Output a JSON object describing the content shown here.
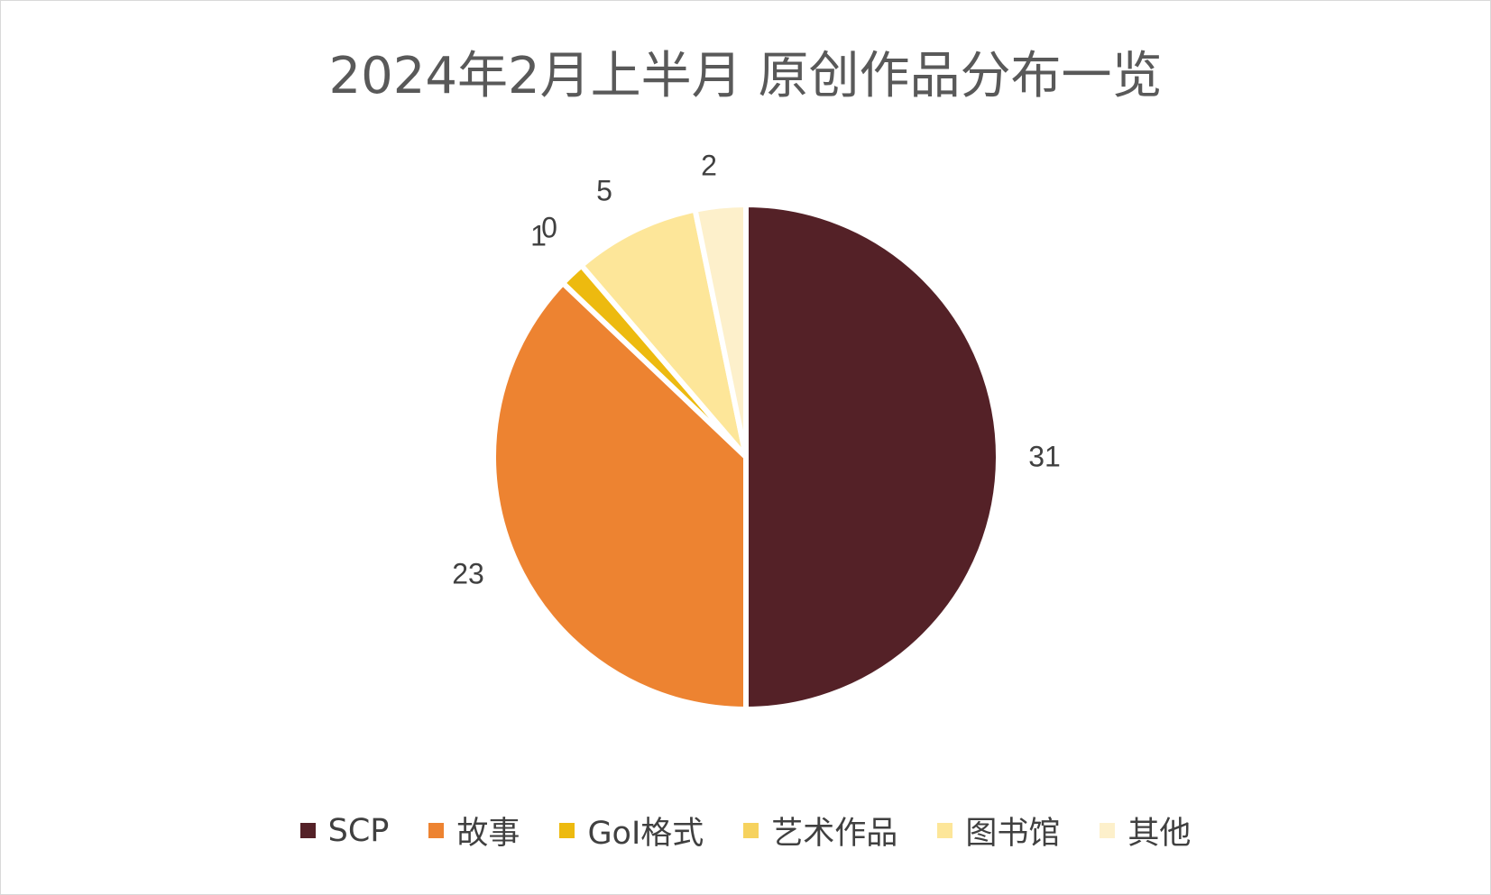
{
  "chart_data": {
    "type": "pie",
    "title": "2024年2月上半月 原创作品分布一览",
    "categories": [
      "SCP",
      "故事",
      "GoI格式",
      "艺术作品",
      "图书馆",
      "其他"
    ],
    "values": [
      31,
      23,
      1,
      0,
      5,
      2
    ],
    "colors": [
      "#542127",
      "#ed8331",
      "#edba0f",
      "#f6d25e",
      "#fde699",
      "#fdf0cb"
    ],
    "legend_position": "bottom",
    "start_angle": "12 o'clock, clockwise"
  }
}
